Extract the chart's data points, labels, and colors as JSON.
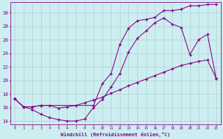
{
  "xlabel": "Windchill (Refroidissement éolien,°C)",
  "ylabel": "",
  "bg_color": "#cceef0",
  "grid_color": "#aacccc",
  "line_color": "#880088",
  "xlim": [
    -0.5,
    23.5
  ],
  "ylim": [
    13.5,
    31.5
  ],
  "yticks": [
    14,
    16,
    18,
    20,
    22,
    24,
    26,
    28,
    30
  ],
  "xticks": [
    0,
    1,
    2,
    3,
    4,
    5,
    6,
    7,
    8,
    9,
    10,
    11,
    12,
    13,
    14,
    15,
    16,
    17,
    18,
    19,
    20,
    21,
    22,
    23
  ],
  "line1_x": [
    0,
    1,
    2,
    3,
    4,
    5,
    6,
    7,
    8,
    9,
    10,
    11,
    12,
    13,
    14,
    15,
    16,
    17,
    18,
    19,
    20,
    21,
    22,
    23
  ],
  "line1_y": [
    17.3,
    16.1,
    15.7,
    15.0,
    14.5,
    14.2,
    14.0,
    14.0,
    14.3,
    16.0,
    17.2,
    19.0,
    21.0,
    24.2,
    26.2,
    27.3,
    28.5,
    29.2,
    28.3,
    27.8,
    23.8,
    26.0,
    26.8,
    20.3
  ],
  "line2_x": [
    0,
    1,
    2,
    3,
    4,
    5,
    6,
    7,
    8,
    9,
    10,
    11,
    12,
    13,
    14,
    15,
    16,
    17,
    18,
    19,
    20,
    21,
    22,
    23
  ],
  "line2_y": [
    17.3,
    16.1,
    16.1,
    16.3,
    16.3,
    15.9,
    16.1,
    16.3,
    16.7,
    17.1,
    17.5,
    18.1,
    18.6,
    19.2,
    19.7,
    20.2,
    20.7,
    21.2,
    21.7,
    22.2,
    22.5,
    22.8,
    23.0,
    20.3
  ],
  "line3_x": [
    0,
    1,
    2,
    3,
    9,
    10,
    11,
    12,
    13,
    14,
    15,
    16,
    17,
    18,
    19,
    20,
    21,
    22,
    23
  ],
  "line3_y": [
    17.3,
    16.1,
    16.1,
    16.3,
    16.3,
    19.5,
    21.0,
    25.3,
    27.7,
    28.8,
    29.0,
    29.3,
    30.3,
    30.3,
    30.5,
    31.0,
    31.0,
    31.2,
    31.2
  ]
}
